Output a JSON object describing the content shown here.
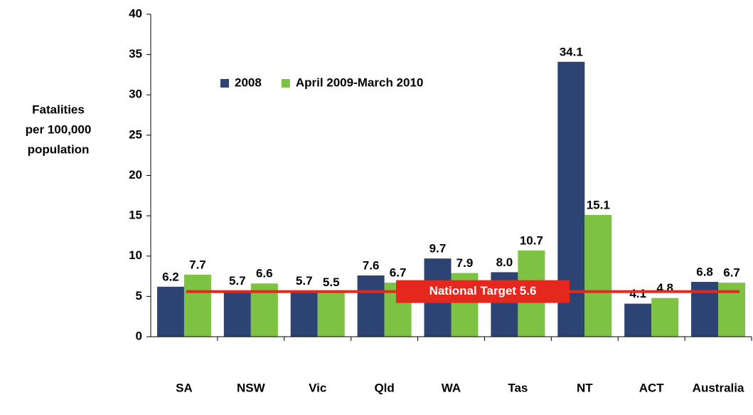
{
  "chart_data": {
    "type": "bar",
    "y_label": [
      "Fatalities",
      "per 100,000",
      "population"
    ],
    "categories": [
      "SA",
      "NSW",
      "Vic",
      "Qld",
      "WA",
      "Tas",
      "NT",
      "ACT",
      "Australia"
    ],
    "series": [
      {
        "name": "2008",
        "color": "#2d4373",
        "values": [
          6.2,
          5.7,
          5.7,
          7.6,
          9.7,
          8.0,
          34.1,
          4.1,
          6.8
        ],
        "value_labels": [
          "6.2",
          "5.7",
          "5.7",
          "7.6",
          "9.7",
          "8.0",
          "34.1",
          "4.1",
          "6.8"
        ]
      },
      {
        "name": "April 2009-March 2010",
        "color": "#7dc242",
        "values": [
          7.7,
          6.6,
          5.5,
          6.7,
          7.9,
          10.7,
          15.1,
          4.8,
          6.7
        ],
        "value_labels": [
          "7.7",
          "6.6",
          "5.5",
          "6.7",
          "7.9",
          "10.7",
          "15.1",
          "4.8",
          "6.7"
        ]
      }
    ],
    "target": {
      "value": 5.6,
      "label": "National Target 5.6",
      "color": "#e5281e"
    },
    "ylim": [
      0,
      40
    ],
    "yticks": [
      0,
      5,
      10,
      15,
      20,
      25,
      30,
      35,
      40
    ],
    "legend": "top-left"
  }
}
